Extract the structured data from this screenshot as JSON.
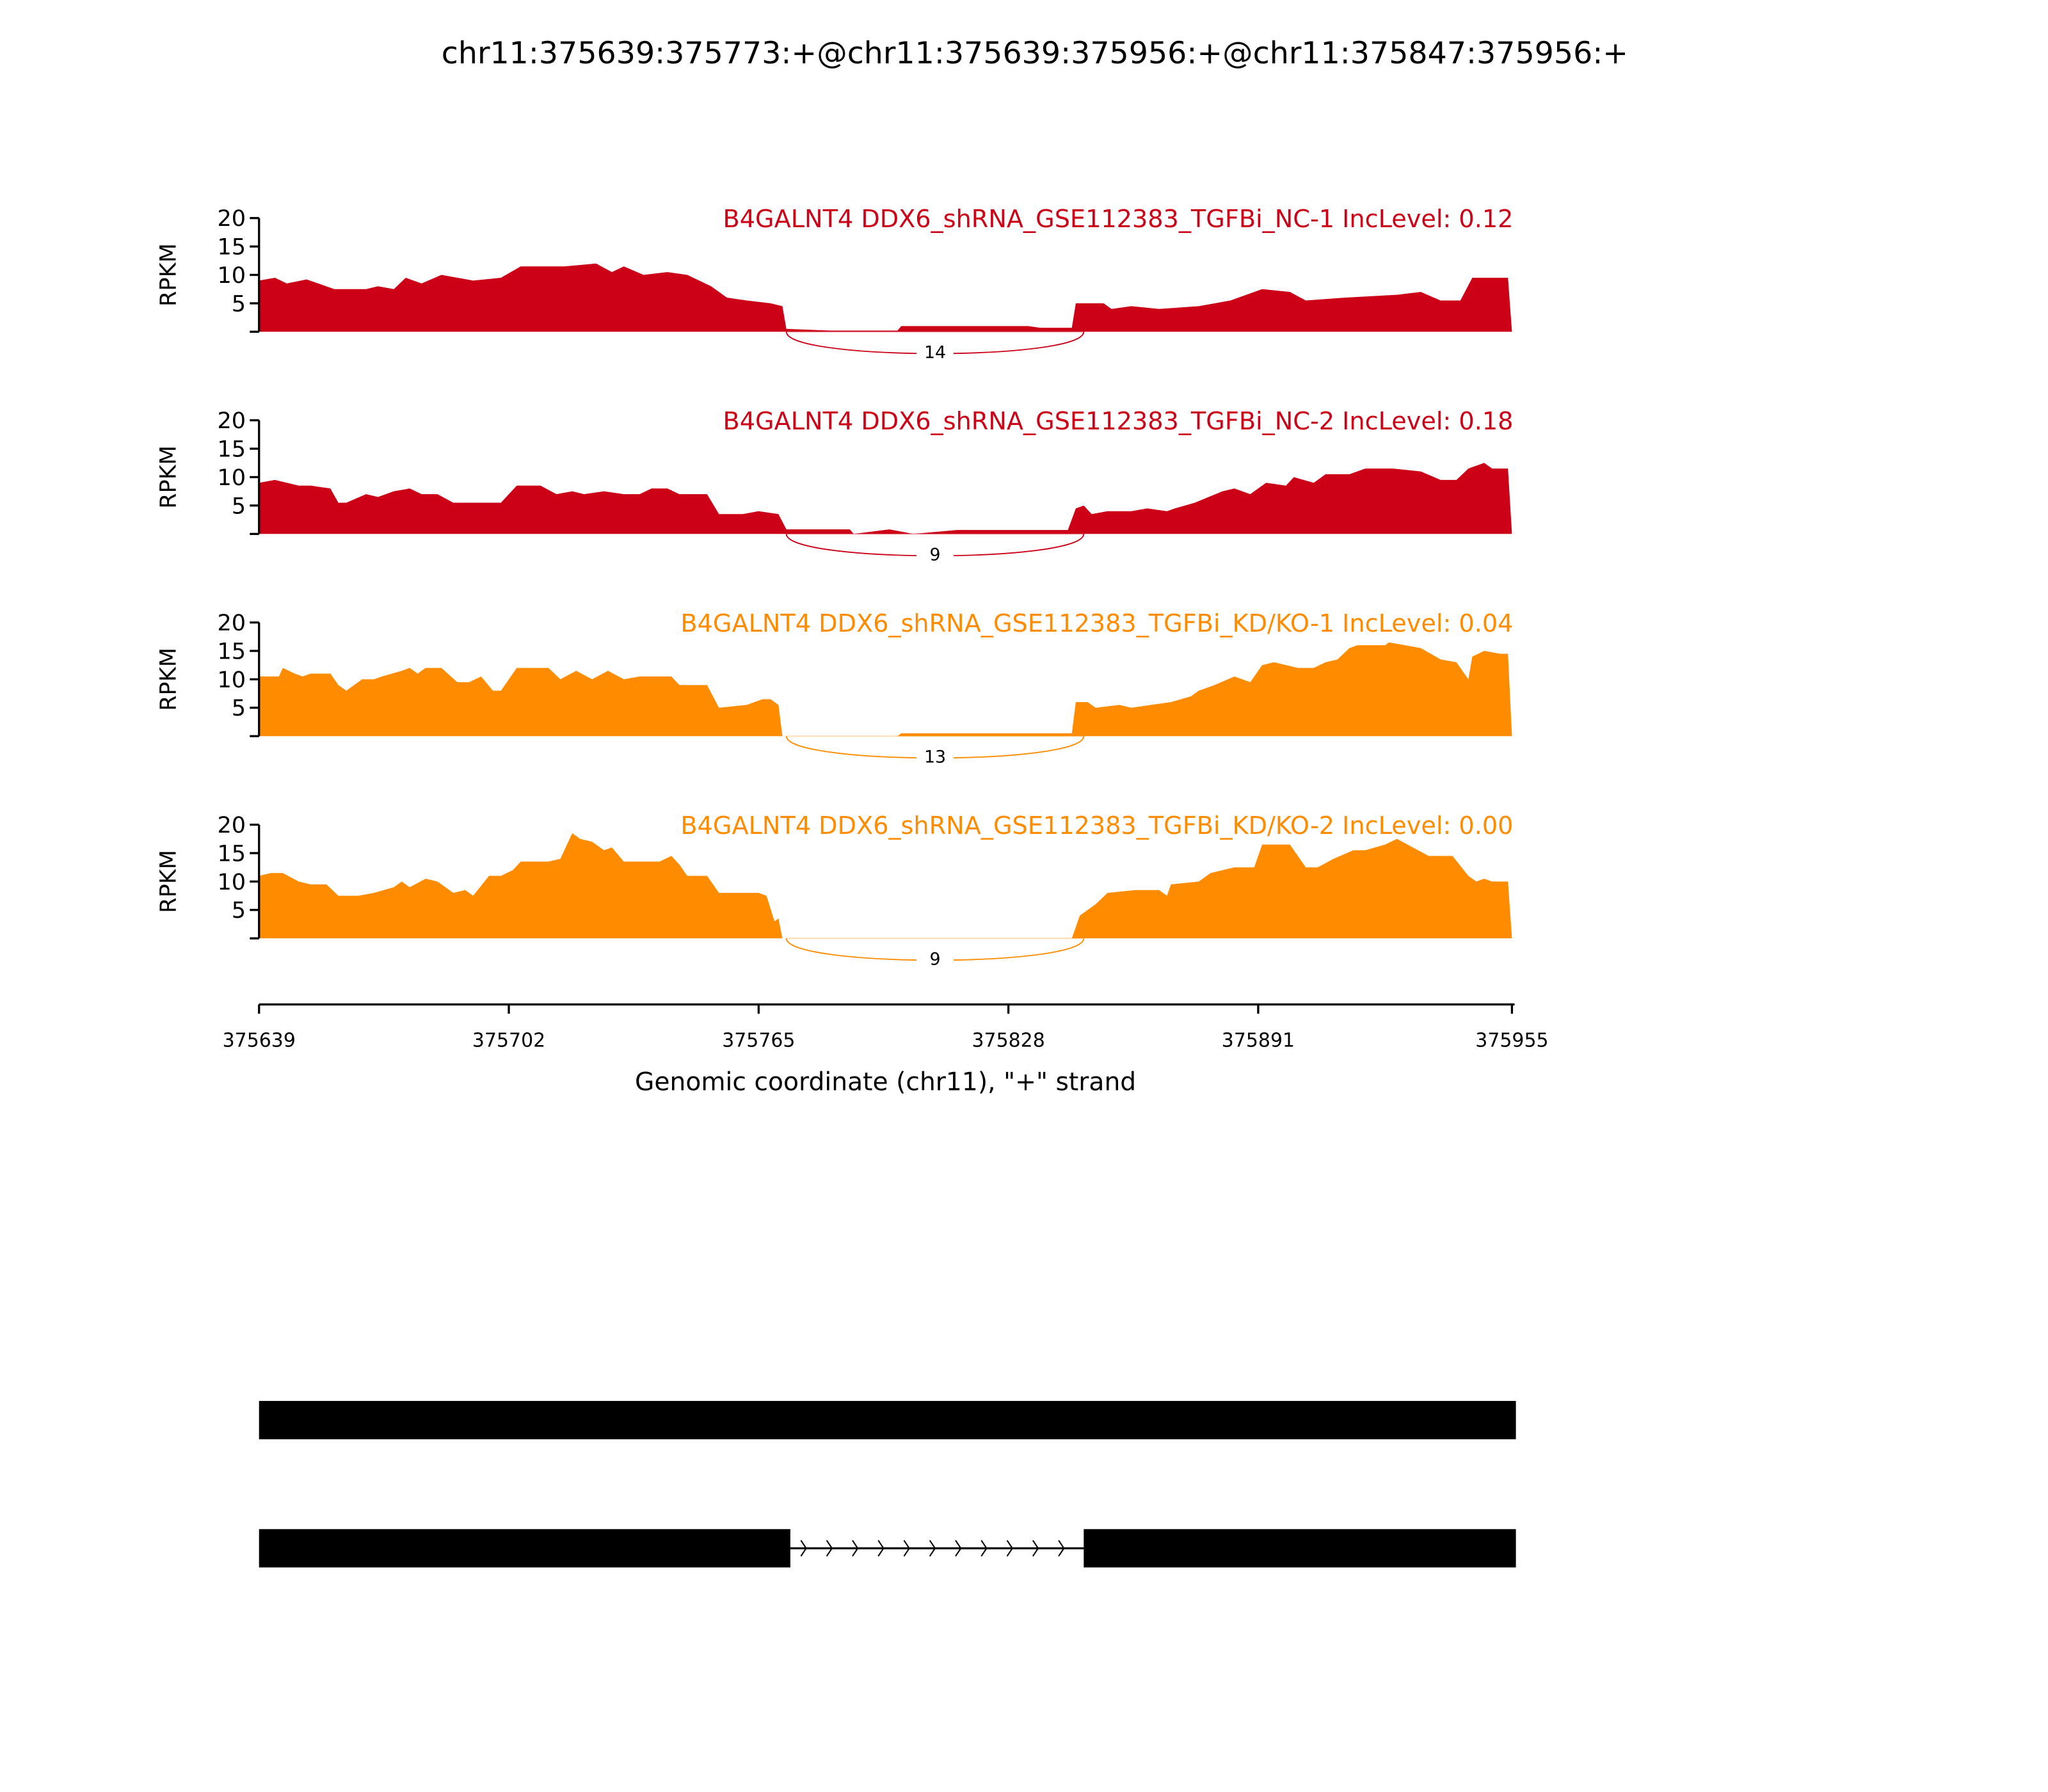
{
  "chart_data": {
    "type": "area",
    "title": "chr11:375639:375773:+@chr11:375639:375956:+@chr11:375847:375956:+",
    "xlabel": "Genomic coordinate (chr11), \"+\" strand",
    "ylabel": "RPKM",
    "xlim": [
      375639,
      375955
    ],
    "ylim": [
      0,
      20
    ],
    "y_ticks": [
      0,
      5,
      10,
      15,
      20
    ],
    "y_tick_labels": [
      "",
      "5",
      "10",
      "15",
      "20"
    ],
    "x_ticks": [
      375639,
      375702,
      375765,
      375828,
      375891,
      375955
    ],
    "x_tick_labels": [
      "375639",
      "375702",
      "375765",
      "375828",
      "375891",
      "375955"
    ],
    "grid": false,
    "panels": [
      {
        "label": "B4GALNT4 DDX6_shRNA_GSE112383_TGFBi_NC-1 IncLevel: 0.12",
        "color": "#cc0016",
        "junction": {
          "start": 375772,
          "end": 375847,
          "count": "14"
        },
        "points": [
          [
            375639,
            9
          ],
          [
            375643,
            9.5
          ],
          [
            375646,
            8.5
          ],
          [
            375651,
            9.2
          ],
          [
            375658,
            7.5
          ],
          [
            375666,
            7.5
          ],
          [
            375669,
            8
          ],
          [
            375673,
            7.5
          ],
          [
            375676,
            9.5
          ],
          [
            375680,
            8.5
          ],
          [
            375685,
            10
          ],
          [
            375693,
            9
          ],
          [
            375700,
            9.5
          ],
          [
            375705,
            11.5
          ],
          [
            375716,
            11.5
          ],
          [
            375724,
            12
          ],
          [
            375728,
            10.5
          ],
          [
            375731,
            11.5
          ],
          [
            375736,
            10
          ],
          [
            375742,
            10.5
          ],
          [
            375747,
            10
          ],
          [
            375753,
            8
          ],
          [
            375757,
            6
          ],
          [
            375762,
            5.5
          ],
          [
            375768,
            5
          ],
          [
            375771,
            4.5
          ],
          [
            375772,
            0.5
          ],
          [
            375783,
            0.2
          ],
          [
            375800,
            0.2
          ],
          [
            375801,
            1
          ],
          [
            375833,
            1
          ],
          [
            375836,
            0.7
          ],
          [
            375844,
            0.7
          ],
          [
            375845,
            5
          ],
          [
            375852,
            5
          ],
          [
            375854,
            4
          ],
          [
            375859,
            4.5
          ],
          [
            375866,
            4
          ],
          [
            375876,
            4.5
          ],
          [
            375884,
            5.5
          ],
          [
            375892,
            7.5
          ],
          [
            375899,
            7
          ],
          [
            375903,
            5.5
          ],
          [
            375913,
            6
          ],
          [
            375926,
            6.5
          ],
          [
            375932,
            7
          ],
          [
            375937,
            5.5
          ],
          [
            375942,
            5.5
          ],
          [
            375945,
            9.5
          ],
          [
            375954,
            9.5
          ],
          [
            375955,
            0
          ]
        ]
      },
      {
        "label": "B4GALNT4 DDX6_shRNA_GSE112383_TGFBi_NC-2 IncLevel: 0.18",
        "color": "#cc0016",
        "junction": {
          "start": 375772,
          "end": 375847,
          "count": "9"
        },
        "points": [
          [
            375639,
            9
          ],
          [
            375643,
            9.5
          ],
          [
            375649,
            8.5
          ],
          [
            375652,
            8.5
          ],
          [
            375657,
            8
          ],
          [
            375659,
            5.5
          ],
          [
            375661,
            5.5
          ],
          [
            375666,
            7
          ],
          [
            375669,
            6.5
          ],
          [
            375673,
            7.5
          ],
          [
            375677,
            8
          ],
          [
            375680,
            7
          ],
          [
            375684,
            7
          ],
          [
            375688,
            5.5
          ],
          [
            375693,
            5.5
          ],
          [
            375700,
            5.5
          ],
          [
            375704,
            8.5
          ],
          [
            375710,
            8.5
          ],
          [
            375714,
            7
          ],
          [
            375718,
            7.5
          ],
          [
            375721,
            7
          ],
          [
            375726,
            7.5
          ],
          [
            375731,
            7
          ],
          [
            375735,
            7
          ],
          [
            375738,
            8
          ],
          [
            375742,
            8
          ],
          [
            375745,
            7
          ],
          [
            375752,
            7
          ],
          [
            375755,
            3.5
          ],
          [
            375761,
            3.5
          ],
          [
            375765,
            4
          ],
          [
            375770,
            3.5
          ],
          [
            375772,
            0.8
          ],
          [
            375788,
            0.8
          ],
          [
            375789,
            0
          ],
          [
            375798,
            0.8
          ],
          [
            375804,
            0
          ],
          [
            375815,
            0.7
          ],
          [
            375843,
            0.7
          ],
          [
            375845,
            4.5
          ],
          [
            375847,
            5
          ],
          [
            375849,
            3.5
          ],
          [
            375853,
            4
          ],
          [
            375859,
            4
          ],
          [
            375863,
            4.5
          ],
          [
            375868,
            4
          ],
          [
            375870,
            4.5
          ],
          [
            375875,
            5.5
          ],
          [
            375882,
            7.5
          ],
          [
            375885,
            8
          ],
          [
            375889,
            7
          ],
          [
            375893,
            9
          ],
          [
            375898,
            8.5
          ],
          [
            375900,
            10
          ],
          [
            375905,
            9
          ],
          [
            375908,
            10.5
          ],
          [
            375914,
            10.5
          ],
          [
            375918,
            11.5
          ],
          [
            375925,
            11.5
          ],
          [
            375932,
            11
          ],
          [
            375937,
            9.5
          ],
          [
            375941,
            9.5
          ],
          [
            375944,
            11.5
          ],
          [
            375948,
            12.5
          ],
          [
            375950,
            11.5
          ],
          [
            375954,
            11.5
          ],
          [
            375955,
            0
          ]
        ]
      },
      {
        "label": "B4GALNT4 DDX6_shRNA_GSE112383_TGFBi_KD/KO-1 IncLevel: 0.04",
        "color": "#ff8c00",
        "junction": {
          "start": 375772,
          "end": 375847,
          "count": "13"
        },
        "points": [
          [
            375639,
            10.5
          ],
          [
            375644,
            10.5
          ],
          [
            375645,
            12
          ],
          [
            375648,
            11
          ],
          [
            375650,
            10.5
          ],
          [
            375652,
            11
          ],
          [
            375657,
            11
          ],
          [
            375659,
            9
          ],
          [
            375661,
            8
          ],
          [
            375665,
            10
          ],
          [
            375668,
            10
          ],
          [
            375670,
            10.5
          ],
          [
            375675,
            11.5
          ],
          [
            375677,
            12
          ],
          [
            375679,
            11
          ],
          [
            375681,
            12
          ],
          [
            375685,
            12
          ],
          [
            375689,
            9.5
          ],
          [
            375692,
            9.5
          ],
          [
            375695,
            10.5
          ],
          [
            375698,
            8
          ],
          [
            375700,
            8
          ],
          [
            375704,
            12
          ],
          [
            375712,
            12
          ],
          [
            375715,
            10
          ],
          [
            375719,
            11.5
          ],
          [
            375723,
            10
          ],
          [
            375727,
            11.5
          ],
          [
            375731,
            10
          ],
          [
            375735,
            10.5
          ],
          [
            375743,
            10.5
          ],
          [
            375745,
            9
          ],
          [
            375752,
            9
          ],
          [
            375755,
            5
          ],
          [
            375762,
            5.5
          ],
          [
            375766,
            6.5
          ],
          [
            375768,
            6.5
          ],
          [
            375770,
            5.5
          ],
          [
            375771,
            0
          ],
          [
            375800,
            0
          ],
          [
            375801,
            0.5
          ],
          [
            375844,
            0.5
          ],
          [
            375845,
            6
          ],
          [
            375848,
            6
          ],
          [
            375850,
            5
          ],
          [
            375856,
            5.5
          ],
          [
            375859,
            5
          ],
          [
            375864,
            5.5
          ],
          [
            375869,
            6
          ],
          [
            375874,
            7
          ],
          [
            375876,
            8
          ],
          [
            375880,
            9
          ],
          [
            375885,
            10.5
          ],
          [
            375889,
            9.5
          ],
          [
            375892,
            12.5
          ],
          [
            375895,
            13
          ],
          [
            375901,
            12
          ],
          [
            375905,
            12
          ],
          [
            375908,
            13
          ],
          [
            375911,
            13.5
          ],
          [
            375914,
            15.5
          ],
          [
            375916,
            16
          ],
          [
            375923,
            16
          ],
          [
            375924,
            16.5
          ],
          [
            375928,
            16
          ],
          [
            375932,
            15.5
          ],
          [
            375937,
            13.5
          ],
          [
            375941,
            13
          ],
          [
            375944,
            10
          ],
          [
            375945,
            14
          ],
          [
            375948,
            15
          ],
          [
            375952,
            14.5
          ],
          [
            375954,
            14.5
          ],
          [
            375955,
            0
          ]
        ]
      },
      {
        "label": "B4GALNT4 DDX6_shRNA_GSE112383_TGFBi_KD/KO-2 IncLevel: 0.00",
        "color": "#ff8c00",
        "junction": {
          "start": 375772,
          "end": 375847,
          "count": "9"
        },
        "points": [
          [
            375639,
            11
          ],
          [
            375642,
            11.5
          ],
          [
            375645,
            11.5
          ],
          [
            375649,
            10
          ],
          [
            375652,
            9.5
          ],
          [
            375656,
            9.5
          ],
          [
            375659,
            7.5
          ],
          [
            375664,
            7.5
          ],
          [
            375668,
            8
          ],
          [
            375673,
            9
          ],
          [
            375675,
            10
          ],
          [
            375677,
            9
          ],
          [
            375681,
            10.5
          ],
          [
            375684,
            10
          ],
          [
            375688,
            8
          ],
          [
            375691,
            8.5
          ],
          [
            375693,
            7.5
          ],
          [
            375697,
            11
          ],
          [
            375700,
            11
          ],
          [
            375703,
            12
          ],
          [
            375705,
            13.5
          ],
          [
            375712,
            13.5
          ],
          [
            375715,
            14
          ],
          [
            375718,
            18.5
          ],
          [
            375720,
            17.5
          ],
          [
            375723,
            17
          ],
          [
            375726,
            15.5
          ],
          [
            375728,
            16
          ],
          [
            375731,
            13.5
          ],
          [
            375740,
            13.5
          ],
          [
            375743,
            14.5
          ],
          [
            375745,
            13
          ],
          [
            375747,
            11
          ],
          [
            375752,
            11
          ],
          [
            375755,
            8
          ],
          [
            375765,
            8
          ],
          [
            375767,
            7.5
          ],
          [
            375769,
            3
          ],
          [
            375770,
            3.5
          ],
          [
            375771,
            0
          ],
          [
            375844,
            0
          ],
          [
            375846,
            4
          ],
          [
            375850,
            6
          ],
          [
            375853,
            8
          ],
          [
            375860,
            8.5
          ],
          [
            375866,
            8.5
          ],
          [
            375868,
            7.5
          ],
          [
            375869,
            9.5
          ],
          [
            375876,
            10
          ],
          [
            375879,
            11.5
          ],
          [
            375885,
            12.5
          ],
          [
            375890,
            12.5
          ],
          [
            375892,
            16.5
          ],
          [
            375899,
            16.5
          ],
          [
            375903,
            12.5
          ],
          [
            375906,
            12.5
          ],
          [
            375910,
            14
          ],
          [
            375915,
            15.5
          ],
          [
            375918,
            15.5
          ],
          [
            375923,
            16.5
          ],
          [
            375926,
            17.5
          ],
          [
            375930,
            16
          ],
          [
            375934,
            14.5
          ],
          [
            375940,
            14.5
          ],
          [
            375944,
            11
          ],
          [
            375946,
            10
          ],
          [
            375948,
            10.5
          ],
          [
            375950,
            10
          ],
          [
            375954,
            10
          ],
          [
            375955,
            0
          ]
        ]
      }
    ],
    "gene_models": [
      {
        "exons": [
          [
            375639,
            375956
          ]
        ]
      },
      {
        "exons": [
          [
            375639,
            375773
          ],
          [
            375847,
            375956
          ]
        ]
      }
    ]
  }
}
